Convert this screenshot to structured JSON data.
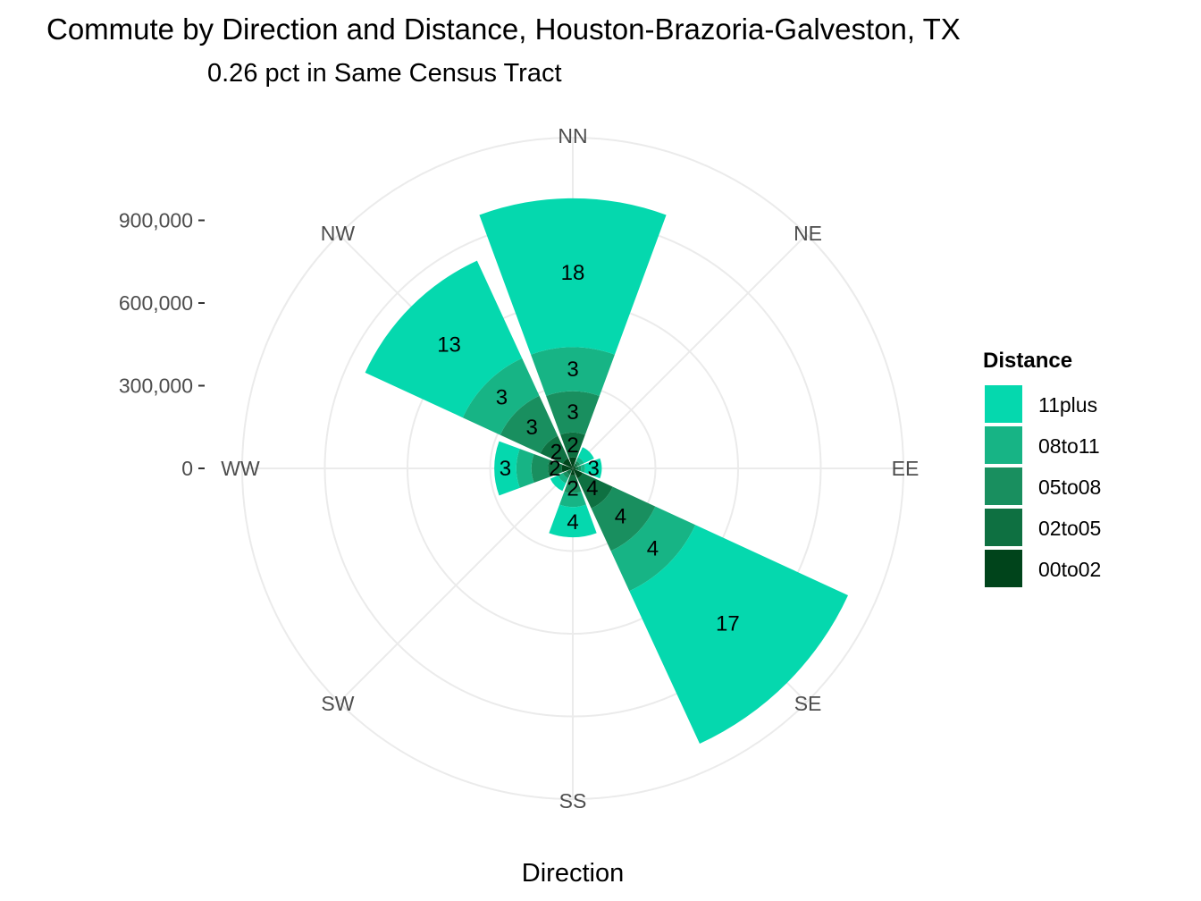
{
  "chart_data": {
    "type": "bar",
    "coord": "polar (wind rose, stacked)",
    "title": "Commute by Direction and Distance, Houston-Brazoria-Galveston, TX",
    "subtitle": "0.26 pct in Same Census Tract",
    "xlabel": "Direction",
    "ylabel": "",
    "ylim": [
      0,
      1200000
    ],
    "y_ticks": [
      0,
      300000,
      600000,
      900000
    ],
    "y_tick_labels": [
      "0",
      "300,000",
      "600,000",
      "900,000"
    ],
    "grid": true,
    "legend_position": "right",
    "legend_title": "Distance",
    "categories": [
      "NN",
      "NE",
      "EE",
      "SE",
      "SS",
      "SW",
      "WW",
      "NW"
    ],
    "series": [
      {
        "name": "00to02",
        "color": "#00441b",
        "values": [
          40000,
          10000,
          10000,
          40000,
          25000,
          10000,
          40000,
          40000
        ],
        "labels": [
          "",
          "",
          "",
          "",
          "",
          "",
          "",
          ""
        ]
      },
      {
        "name": "02to05",
        "color": "#0e7041",
        "values": [
          90000,
          10000,
          10000,
          120000,
          30000,
          15000,
          50000,
          90000
        ],
        "labels": [
          "2",
          "",
          "",
          "4",
          "",
          "",
          "2",
          "2"
        ]
      },
      {
        "name": "05to08",
        "color": "#198f5f",
        "values": [
          150000,
          10000,
          10000,
          170000,
          35000,
          15000,
          60000,
          160000
        ],
        "labels": [
          "3",
          "",
          "",
          "4",
          "2",
          "",
          "",
          "3"
        ]
      },
      {
        "name": "08to11",
        "color": "#17b485",
        "values": [
          160000,
          15000,
          15000,
          160000,
          50000,
          20000,
          55000,
          150000
        ],
        "labels": [
          "3",
          "",
          "",
          "4",
          "",
          "",
          "",
          "3"
        ]
      },
      {
        "name": "11plus",
        "color": "#05d8ae",
        "values": [
          540000,
          40000,
          60000,
          610000,
          110000,
          30000,
          80000,
          390000
        ],
        "labels": [
          "18",
          "",
          "3",
          "17",
          "4",
          "",
          "3",
          "13"
        ]
      }
    ],
    "legend_order": [
      "11plus",
      "08to11",
      "05to08",
      "02to05",
      "00to02"
    ]
  }
}
